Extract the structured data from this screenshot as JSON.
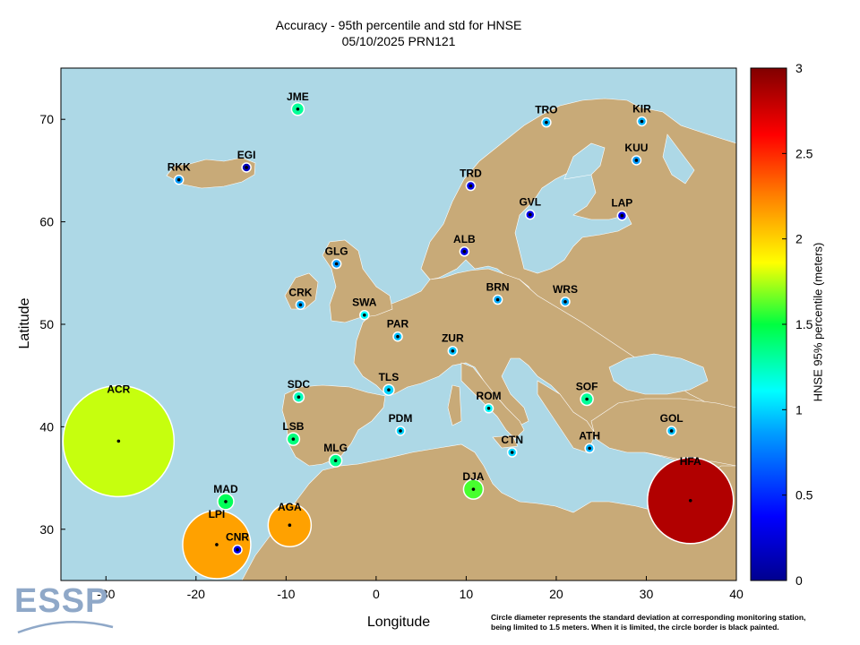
{
  "title": {
    "line1": "Accuracy - 95th percentile and std for HNSE",
    "line2": "05/10/2025 PRN121"
  },
  "axes": {
    "xlabel": "Longitude",
    "ylabel": "Latitude",
    "xlim": [
      -35,
      40
    ],
    "ylim": [
      25,
      75
    ],
    "xticks": [
      -30,
      -20,
      -10,
      0,
      10,
      20,
      30,
      40
    ],
    "yticks": [
      30,
      40,
      50,
      60,
      70
    ]
  },
  "colorbar": {
    "label": "HNSE 95% percentile (meters)",
    "range": [
      0,
      3
    ],
    "ticks": [
      "0",
      "0.5",
      "1",
      "1.5",
      "2",
      "2.5",
      "3"
    ]
  },
  "colors": {
    "sea": "#add8e6",
    "land": "#c8aa78",
    "border": "#ffffff"
  },
  "note": {
    "line1": "Circle diameter represents the standard deviation at corresponding monitoring station,",
    "line2": "being limited to 1.5 meters. When it is limited, the circle border is black painted."
  },
  "logo": "ESSP",
  "stations": [
    {
      "name": "JME",
      "lon": -8.7,
      "lat": 71.0,
      "value": 1.32,
      "std": 0.07
    },
    {
      "name": "TRO",
      "lon": 18.9,
      "lat": 69.7,
      "value": 0.92,
      "std": 0.05
    },
    {
      "name": "KIR",
      "lon": 29.5,
      "lat": 69.8,
      "value": 0.92,
      "std": 0.05
    },
    {
      "name": "EGI",
      "lon": -14.4,
      "lat": 65.3,
      "value": 0.15,
      "std": 0.02
    },
    {
      "name": "RKK",
      "lon": -21.9,
      "lat": 64.1,
      "value": 0.85,
      "std": 0.05
    },
    {
      "name": "KUU",
      "lon": 28.9,
      "lat": 66.0,
      "value": 0.85,
      "std": 0.05
    },
    {
      "name": "TRD",
      "lon": 10.5,
      "lat": 63.5,
      "value": 0.3,
      "std": 0.02
    },
    {
      "name": "GVL",
      "lon": 17.1,
      "lat": 60.7,
      "value": 0.3,
      "std": 0.02
    },
    {
      "name": "LAP",
      "lon": 27.3,
      "lat": 60.6,
      "value": 0.3,
      "std": 0.02
    },
    {
      "name": "ALB",
      "lon": 9.8,
      "lat": 57.1,
      "value": 0.3,
      "std": 0.02
    },
    {
      "name": "GLG",
      "lon": -4.4,
      "lat": 55.9,
      "value": 0.85,
      "std": 0.05
    },
    {
      "name": "CRK",
      "lon": -8.4,
      "lat": 51.9,
      "value": 0.9,
      "std": 0.05
    },
    {
      "name": "BRN",
      "lon": 13.5,
      "lat": 52.4,
      "value": 0.9,
      "std": 0.05
    },
    {
      "name": "WRS",
      "lon": 21.0,
      "lat": 52.2,
      "value": 0.9,
      "std": 0.05
    },
    {
      "name": "SWA",
      "lon": -1.3,
      "lat": 50.9,
      "value": 1.1,
      "std": 0.05
    },
    {
      "name": "PAR",
      "lon": 2.4,
      "lat": 48.8,
      "value": 0.95,
      "std": 0.05
    },
    {
      "name": "ZUR",
      "lon": 8.5,
      "lat": 47.4,
      "value": 0.95,
      "std": 0.05
    },
    {
      "name": "TLS",
      "lon": 1.4,
      "lat": 43.6,
      "value": 1.0,
      "std": 0.06
    },
    {
      "name": "SDC",
      "lon": -8.6,
      "lat": 42.9,
      "value": 1.25,
      "std": 0.06
    },
    {
      "name": "ROM",
      "lon": 12.5,
      "lat": 41.8,
      "value": 1.1,
      "std": 0.05
    },
    {
      "name": "SOF",
      "lon": 23.4,
      "lat": 42.7,
      "value": 1.32,
      "std": 0.07
    },
    {
      "name": "ACR",
      "lon": -28.6,
      "lat": 38.6,
      "value": 1.78,
      "std": 0.62
    },
    {
      "name": "LSB",
      "lon": -9.2,
      "lat": 38.8,
      "value": 1.38,
      "std": 0.07
    },
    {
      "name": "PDM",
      "lon": 2.7,
      "lat": 39.6,
      "value": 1.0,
      "std": 0.05
    },
    {
      "name": "GOL",
      "lon": 32.8,
      "lat": 39.6,
      "value": 0.95,
      "std": 0.05
    },
    {
      "name": "MLG",
      "lon": -4.5,
      "lat": 36.7,
      "value": 1.35,
      "std": 0.07
    },
    {
      "name": "CTN",
      "lon": 15.1,
      "lat": 37.5,
      "value": 1.0,
      "std": 0.05
    },
    {
      "name": "ATH",
      "lon": 23.7,
      "lat": 37.9,
      "value": 0.92,
      "std": 0.04
    },
    {
      "name": "DJA",
      "lon": 10.8,
      "lat": 33.9,
      "value": 1.6,
      "std": 0.11
    },
    {
      "name": "MAD",
      "lon": -16.7,
      "lat": 32.7,
      "value": 1.45,
      "std": 0.09
    },
    {
      "name": "AGA",
      "lon": -9.6,
      "lat": 30.4,
      "value": 2.15,
      "std": 0.24
    },
    {
      "name": "LPI",
      "lon": -17.7,
      "lat": 28.5,
      "value": 2.15,
      "std": 0.38
    },
    {
      "name": "CNR",
      "lon": -15.4,
      "lat": 28.0,
      "value": 0.3,
      "std": 0.0
    },
    {
      "name": "HFA",
      "lon": 34.9,
      "lat": 32.8,
      "value": 2.85,
      "std": 0.48
    }
  ]
}
